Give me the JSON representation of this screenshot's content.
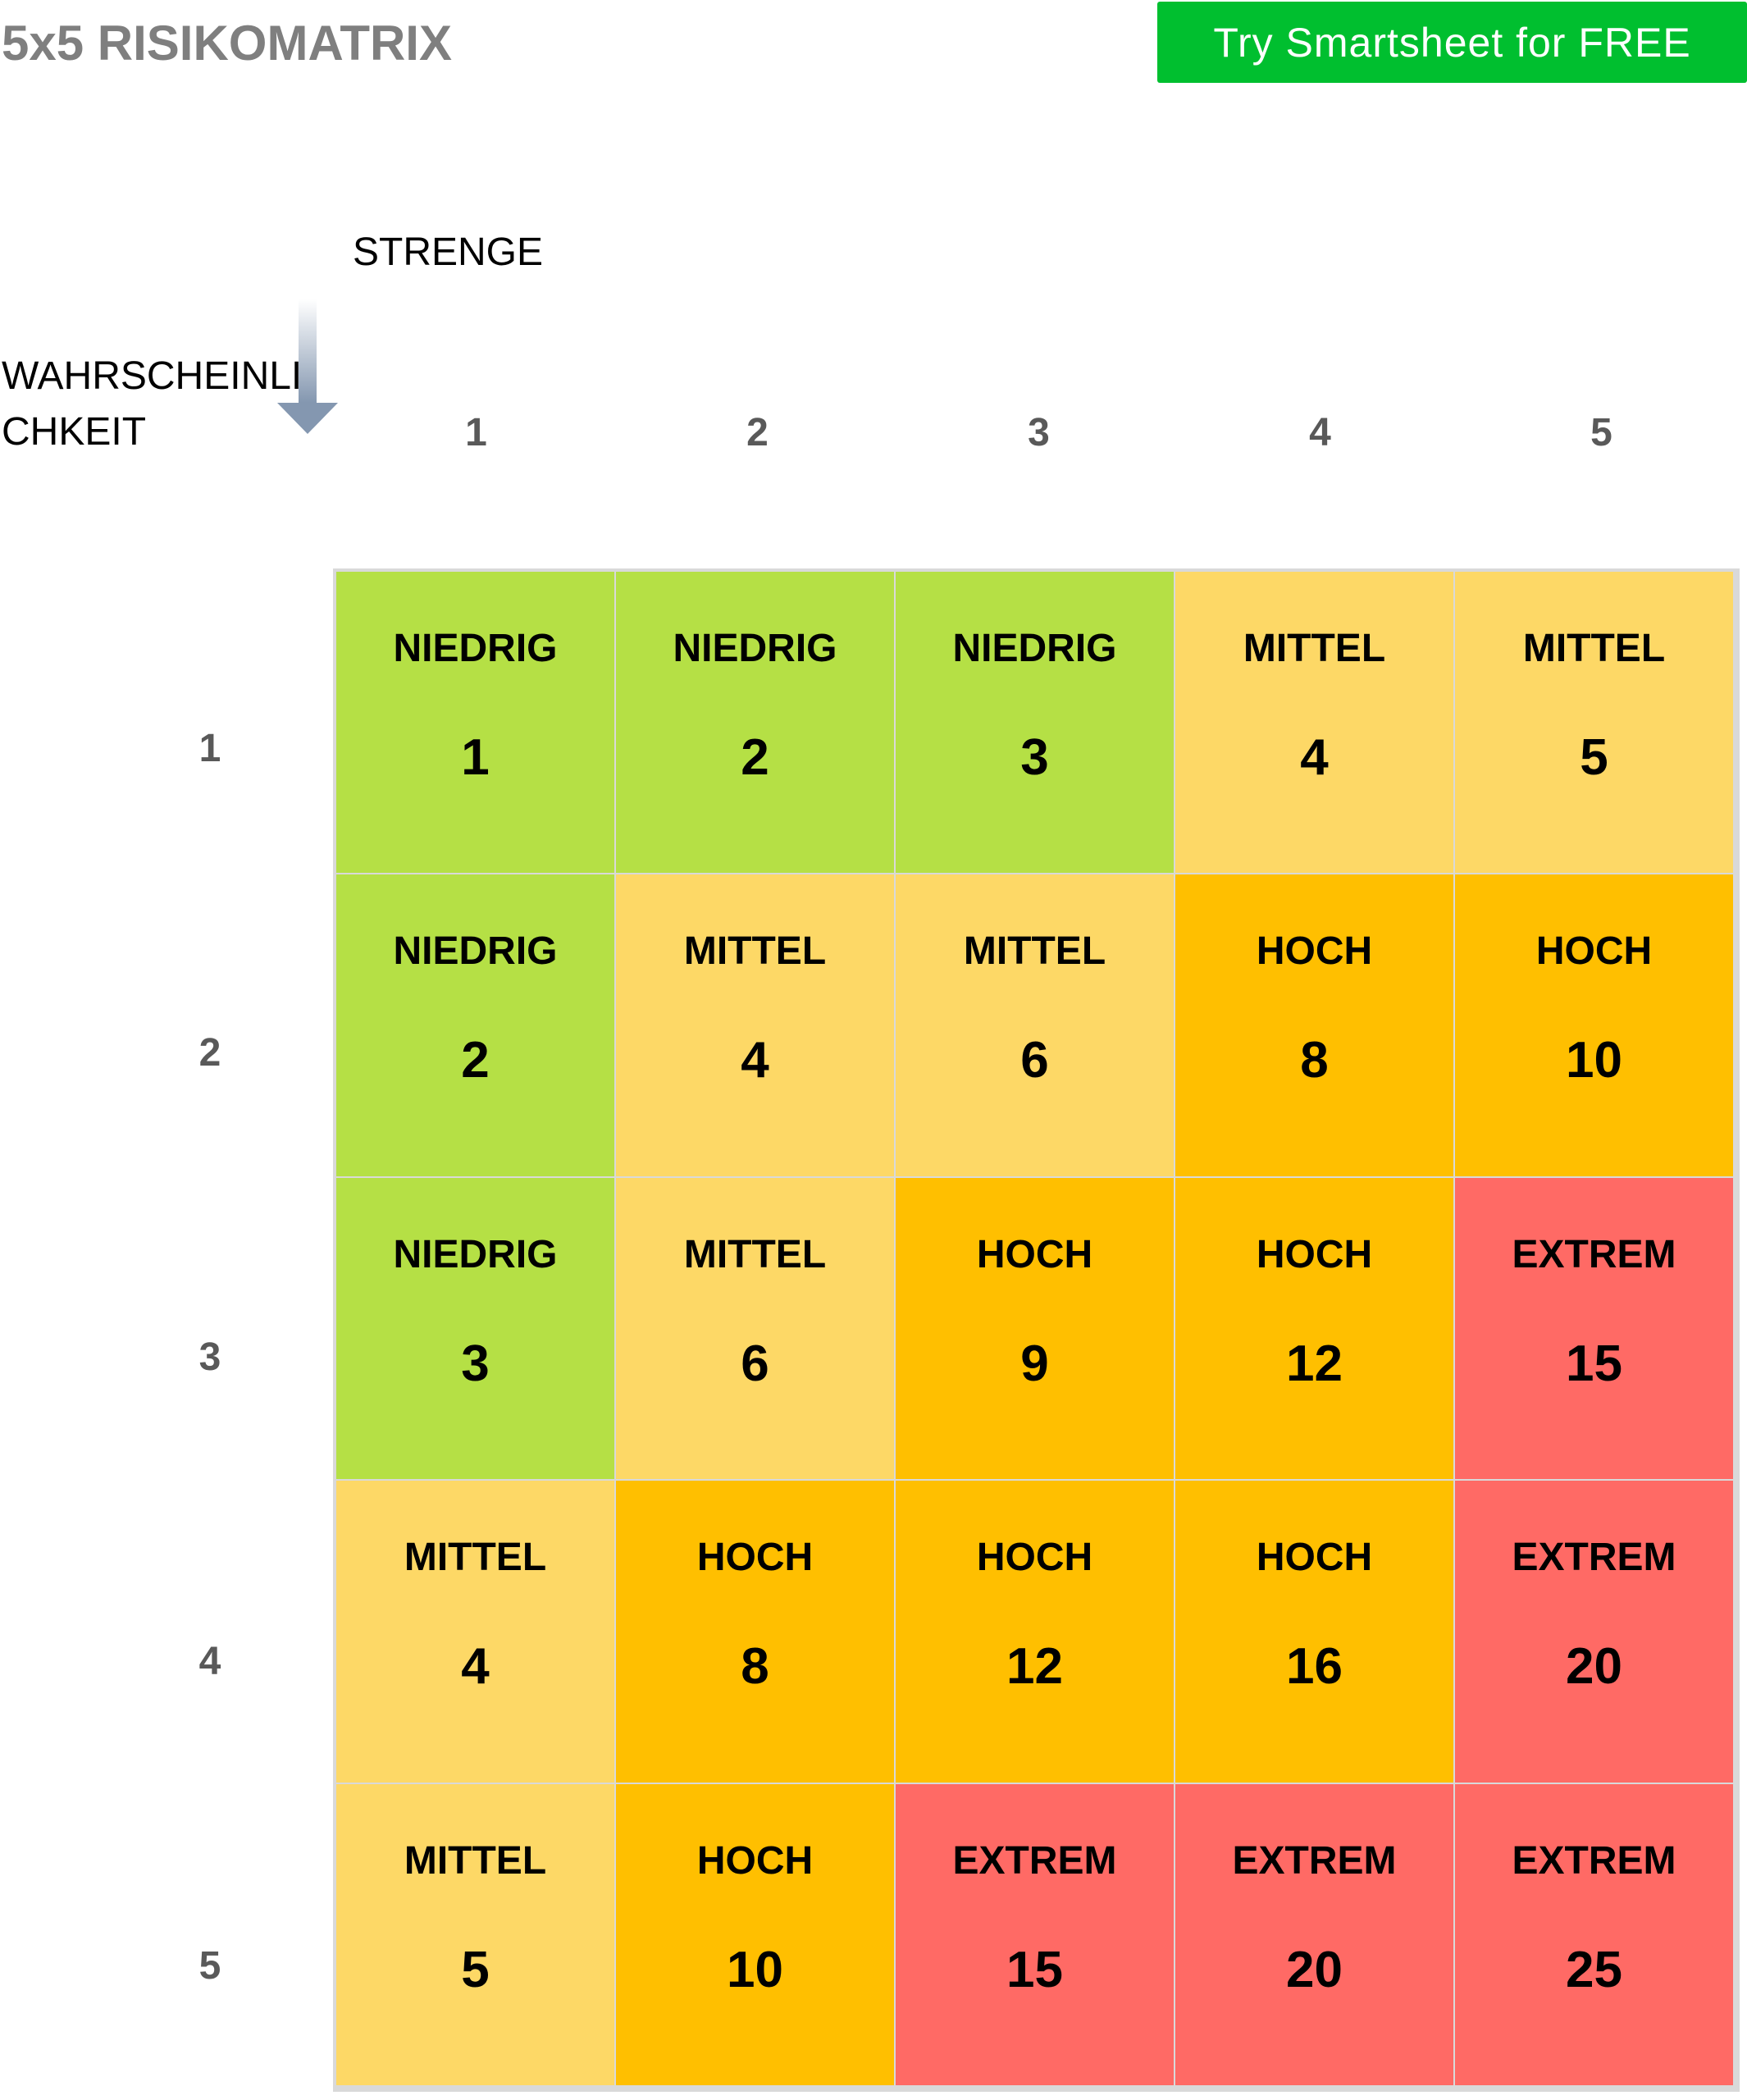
{
  "title": "5x5 RISIKOMATRIX",
  "cta": {
    "label": "Try Smartsheet for FREE"
  },
  "axes": {
    "severity_label": "STRENGE",
    "likelihood_label": "WAHRSCHEINLICHKEIT",
    "likelihood_label_lines": [
      "WAHRSCHEINLI",
      "CHKEIT"
    ]
  },
  "column_headers": [
    "1",
    "2",
    "3",
    "4",
    "5"
  ],
  "row_headers": [
    "1",
    "2",
    "3",
    "4",
    "5"
  ],
  "colors": {
    "niedrig": "#b5e045",
    "mittel": "#fdd866",
    "hoch": "#ffbf00",
    "extrem": "#ff6a65",
    "cta": "#00bf2f",
    "title": "#7f7f7f"
  },
  "matrix": [
    [
      {
        "level": "NIEDRIG",
        "score": "1",
        "category": "niedrig"
      },
      {
        "level": "NIEDRIG",
        "score": "2",
        "category": "niedrig"
      },
      {
        "level": "NIEDRIG",
        "score": "3",
        "category": "niedrig"
      },
      {
        "level": "MITTEL",
        "score": "4",
        "category": "mittel"
      },
      {
        "level": "MITTEL",
        "score": "5",
        "category": "mittel"
      }
    ],
    [
      {
        "level": "NIEDRIG",
        "score": "2",
        "category": "niedrig"
      },
      {
        "level": "MITTEL",
        "score": "4",
        "category": "mittel"
      },
      {
        "level": "MITTEL",
        "score": "6",
        "category": "mittel"
      },
      {
        "level": "HOCH",
        "score": "8",
        "category": "hoch"
      },
      {
        "level": "HOCH",
        "score": "10",
        "category": "hoch"
      }
    ],
    [
      {
        "level": "NIEDRIG",
        "score": "3",
        "category": "niedrig"
      },
      {
        "level": "MITTEL",
        "score": "6",
        "category": "mittel"
      },
      {
        "level": "HOCH",
        "score": "9",
        "category": "hoch"
      },
      {
        "level": "HOCH",
        "score": "12",
        "category": "hoch"
      },
      {
        "level": "EXTREM",
        "score": "15",
        "category": "extrem"
      }
    ],
    [
      {
        "level": "MITTEL",
        "score": "4",
        "category": "mittel"
      },
      {
        "level": "HOCH",
        "score": "8",
        "category": "hoch"
      },
      {
        "level": "HOCH",
        "score": "12",
        "category": "hoch"
      },
      {
        "level": "HOCH",
        "score": "16",
        "category": "hoch"
      },
      {
        "level": "EXTREM",
        "score": "20",
        "category": "extrem"
      }
    ],
    [
      {
        "level": "MITTEL",
        "score": "5",
        "category": "mittel"
      },
      {
        "level": "HOCH",
        "score": "10",
        "category": "hoch"
      },
      {
        "level": "EXTREM",
        "score": "15",
        "category": "extrem"
      },
      {
        "level": "EXTREM",
        "score": "20",
        "category": "extrem"
      },
      {
        "level": "EXTREM",
        "score": "25",
        "category": "extrem"
      }
    ]
  ]
}
